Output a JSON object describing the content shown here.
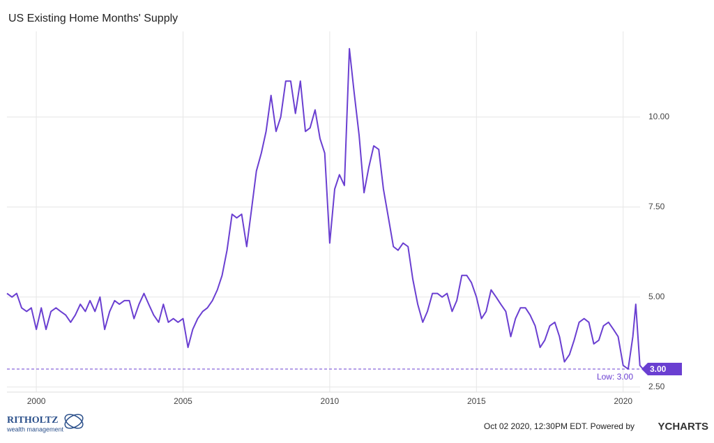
{
  "chart_data": {
    "type": "line",
    "title": "US Existing Home Months' Supply",
    "x": [
      1999.0,
      1999.17,
      1999.33,
      1999.5,
      1999.67,
      1999.83,
      2000.0,
      2000.17,
      2000.33,
      2000.5,
      2000.67,
      2000.83,
      2001.0,
      2001.17,
      2001.33,
      2001.5,
      2001.67,
      2001.83,
      2002.0,
      2002.17,
      2002.33,
      2002.5,
      2002.67,
      2002.83,
      2003.0,
      2003.17,
      2003.33,
      2003.5,
      2003.67,
      2003.83,
      2004.0,
      2004.17,
      2004.33,
      2004.5,
      2004.67,
      2004.83,
      2005.0,
      2005.17,
      2005.33,
      2005.5,
      2005.67,
      2005.83,
      2006.0,
      2006.17,
      2006.33,
      2006.5,
      2006.67,
      2006.83,
      2007.0,
      2007.17,
      2007.33,
      2007.5,
      2007.67,
      2007.83,
      2008.0,
      2008.17,
      2008.33,
      2008.5,
      2008.67,
      2008.83,
      2009.0,
      2009.17,
      2009.33,
      2009.5,
      2009.67,
      2009.83,
      2010.0,
      2010.17,
      2010.33,
      2010.5,
      2010.67,
      2010.83,
      2011.0,
      2011.17,
      2011.33,
      2011.5,
      2011.67,
      2011.83,
      2012.0,
      2012.17,
      2012.33,
      2012.5,
      2012.67,
      2012.83,
      2013.0,
      2013.17,
      2013.33,
      2013.5,
      2013.67,
      2013.83,
      2014.0,
      2014.17,
      2014.33,
      2014.5,
      2014.67,
      2014.83,
      2015.0,
      2015.17,
      2015.33,
      2015.5,
      2015.67,
      2015.83,
      2016.0,
      2016.17,
      2016.33,
      2016.5,
      2016.67,
      2016.83,
      2017.0,
      2017.17,
      2017.33,
      2017.5,
      2017.67,
      2017.83,
      2018.0,
      2018.17,
      2018.33,
      2018.5,
      2018.67,
      2018.83,
      2019.0,
      2019.17,
      2019.33,
      2019.5,
      2019.67,
      2019.83,
      2020.0,
      2020.17,
      2020.33,
      2020.43,
      2020.57,
      2020.68
    ],
    "series": [
      {
        "name": "US Existing Home Months' Supply",
        "color": "#6a3fd1",
        "values": [
          5.1,
          5.0,
          5.1,
          4.7,
          4.6,
          4.7,
          4.1,
          4.7,
          4.1,
          4.6,
          4.7,
          4.6,
          4.5,
          4.3,
          4.5,
          4.8,
          4.6,
          4.9,
          4.6,
          5.0,
          4.1,
          4.6,
          4.9,
          4.8,
          4.9,
          4.9,
          4.4,
          4.8,
          5.1,
          4.8,
          4.5,
          4.3,
          4.8,
          4.3,
          4.4,
          4.3,
          4.4,
          3.6,
          4.1,
          4.4,
          4.6,
          4.7,
          4.9,
          5.2,
          5.6,
          6.3,
          7.3,
          7.2,
          7.3,
          6.4,
          7.4,
          8.5,
          9.0,
          9.6,
          10.6,
          9.6,
          10.0,
          11.0,
          11.0,
          10.1,
          11.0,
          9.6,
          9.7,
          10.2,
          9.4,
          9.0,
          6.5,
          8.0,
          8.4,
          8.1,
          11.9,
          10.7,
          9.5,
          7.9,
          8.6,
          9.2,
          9.1,
          8.0,
          7.2,
          6.4,
          6.3,
          6.5,
          6.4,
          5.5,
          4.8,
          4.3,
          4.6,
          5.1,
          5.1,
          5.0,
          5.1,
          4.6,
          4.9,
          5.6,
          5.6,
          5.4,
          5.0,
          4.4,
          4.6,
          5.2,
          5.0,
          4.8,
          4.6,
          3.9,
          4.4,
          4.7,
          4.7,
          4.5,
          4.2,
          3.6,
          3.8,
          4.2,
          4.3,
          3.9,
          3.2,
          3.4,
          3.8,
          4.3,
          4.4,
          4.3,
          3.7,
          3.8,
          4.2,
          4.3,
          4.1,
          3.9,
          3.1,
          3.0,
          3.9,
          4.8,
          3.1,
          3.0
        ]
      }
    ],
    "xlim": [
      1999.0,
      2020.72
    ],
    "ylim": [
      2.36,
      12.38
    ],
    "xticks": [
      2000,
      2005,
      2010,
      2015,
      2020
    ],
    "yticks": [
      {
        "value": 2.5,
        "label": "2.50"
      },
      {
        "value": 5.0,
        "label": "5.00"
      },
      {
        "value": 7.5,
        "label": "7.50"
      },
      {
        "value": 10.0,
        "label": "10.00"
      }
    ],
    "grid": true,
    "low_line": {
      "value": 3.0,
      "label": "Low: 3.00",
      "badge": "3.00"
    }
  },
  "footer": {
    "timestamp": "Oct 02 2020, 12:30PM EDT. Powered by",
    "brand": "YCHARTS",
    "logo_name": "RITHOLTZ",
    "logo_sub": "wealth management"
  }
}
